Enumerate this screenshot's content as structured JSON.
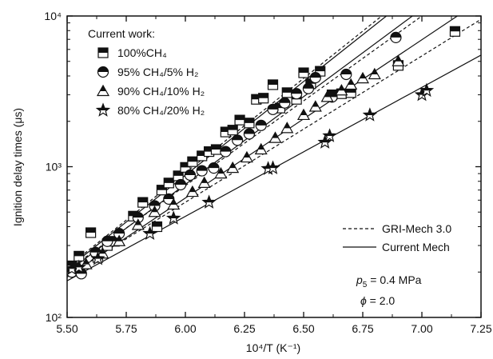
{
  "chart_data": {
    "type": "scatter",
    "title": "",
    "xlabel": "10⁴/T (K⁻¹)",
    "ylabel": "Ignition delay times (μs)",
    "xlim": [
      5.5,
      7.25
    ],
    "ylim": [
      100,
      10000
    ],
    "yscale": "log",
    "x_ticks": [
      "5.50",
      "5.75",
      "6.00",
      "6.25",
      "6.50",
      "6.75",
      "7.00",
      "7.25"
    ],
    "y_ticks": [
      "10²",
      "10³",
      "10⁴"
    ],
    "grid": false,
    "legend_title": "Current work:",
    "legend_placement": "top-left",
    "series": [
      {
        "name": "100%CH₄",
        "marker": "half-filled-square",
        "x": [
          5.52,
          5.55,
          5.6,
          5.63,
          5.67,
          5.7,
          5.78,
          5.82,
          5.88,
          5.9,
          5.93,
          5.97,
          6.0,
          6.03,
          6.07,
          6.1,
          6.13,
          6.17,
          6.2,
          6.23,
          6.27,
          6.3,
          6.33,
          6.37,
          6.4,
          6.43,
          6.47,
          6.5,
          6.53,
          6.57,
          6.62,
          6.66,
          6.7,
          6.9,
          7.14
        ],
        "y": [
          220,
          255,
          365,
          250,
          300,
          320,
          470,
          580,
          400,
          700,
          780,
          870,
          990,
          1080,
          1180,
          1260,
          1300,
          1700,
          1750,
          2040,
          1950,
          2800,
          2850,
          3500,
          2450,
          3100,
          2800,
          4200,
          3550,
          4300,
          3000,
          3050,
          3100,
          4700,
          7900
        ]
      },
      {
        "name": "95% CH₄/5% H₂",
        "marker": "half-filled-circle",
        "x": [
          5.52,
          5.56,
          5.62,
          5.67,
          5.72,
          5.8,
          5.87,
          5.93,
          5.98,
          6.02,
          6.07,
          6.12,
          6.17,
          6.22,
          6.27,
          6.32,
          6.37,
          6.42,
          6.47,
          6.52,
          6.55,
          6.62,
          6.68,
          6.89
        ],
        "y": [
          200,
          195,
          270,
          320,
          360,
          460,
          550,
          610,
          760,
          880,
          940,
          980,
          1260,
          1500,
          1650,
          1880,
          2400,
          2650,
          3050,
          3300,
          3900,
          2900,
          4100,
          7200
        ]
      },
      {
        "name": "90% CH₄/10% H₂",
        "marker": "half-filled-triangle",
        "x": [
          5.58,
          5.65,
          5.72,
          5.8,
          5.87,
          5.95,
          6.03,
          6.08,
          6.15,
          6.2,
          6.26,
          6.32,
          6.38,
          6.43,
          6.5,
          6.55,
          6.6,
          6.66,
          6.7,
          6.75,
          6.8,
          6.9
        ],
        "y": [
          225,
          265,
          320,
          410,
          500,
          560,
          680,
          780,
          900,
          980,
          1150,
          1300,
          1550,
          1800,
          2200,
          2500,
          2900,
          3200,
          3500,
          3850,
          4100,
          5000
        ]
      },
      {
        "name": "80% CH₄/20% H₂",
        "marker": "half-filled-star",
        "x": [
          5.52,
          5.55,
          5.63,
          5.85,
          5.95,
          6.1,
          6.35,
          6.37,
          6.59,
          6.61,
          6.78,
          7.0,
          7.02
        ],
        "y": [
          210,
          215,
          245,
          360,
          455,
          580,
          970,
          980,
          1450,
          1600,
          2200,
          3000,
          3200
        ]
      }
    ],
    "fit_lines": {
      "legend": [
        {
          "label": "GRI-Mech 3.0",
          "style": "dashed"
        },
        {
          "label": "Current Mech",
          "style": "solid"
        }
      ],
      "lines": [
        {
          "series": "100%CH₄",
          "style": "dashed",
          "x": [
            5.5,
            6.83
          ],
          "y": [
            215,
            10000
          ]
        },
        {
          "series": "100%CH₄",
          "style": "solid",
          "x": [
            5.5,
            6.85
          ],
          "y": [
            210,
            10000
          ]
        },
        {
          "series": "95% CH₄/5% H₂",
          "style": "dashed",
          "x": [
            5.5,
            7.0
          ],
          "y": [
            205,
            10000
          ]
        },
        {
          "series": "95% CH₄/5% H₂",
          "style": "solid",
          "x": [
            5.5,
            6.96
          ],
          "y": [
            200,
            10000
          ]
        },
        {
          "series": "90% CH₄/10% H₂",
          "style": "dashed",
          "x": [
            5.5,
            7.25
          ],
          "y": [
            190,
            9500
          ]
        },
        {
          "series": "90% CH₄/10% H₂",
          "style": "solid",
          "x": [
            5.5,
            7.15
          ],
          "y": [
            185,
            10000
          ]
        },
        {
          "series": "80% CH₄/20% H₂",
          "style": "solid",
          "x": [
            5.5,
            7.25
          ],
          "y": [
            175,
            5500
          ]
        }
      ]
    },
    "annotations": [
      {
        "label": "p",
        "subscript": "5",
        "value": " = 0.4 MPa"
      },
      {
        "label": "ϕ",
        "value": " = 2.0"
      }
    ]
  }
}
